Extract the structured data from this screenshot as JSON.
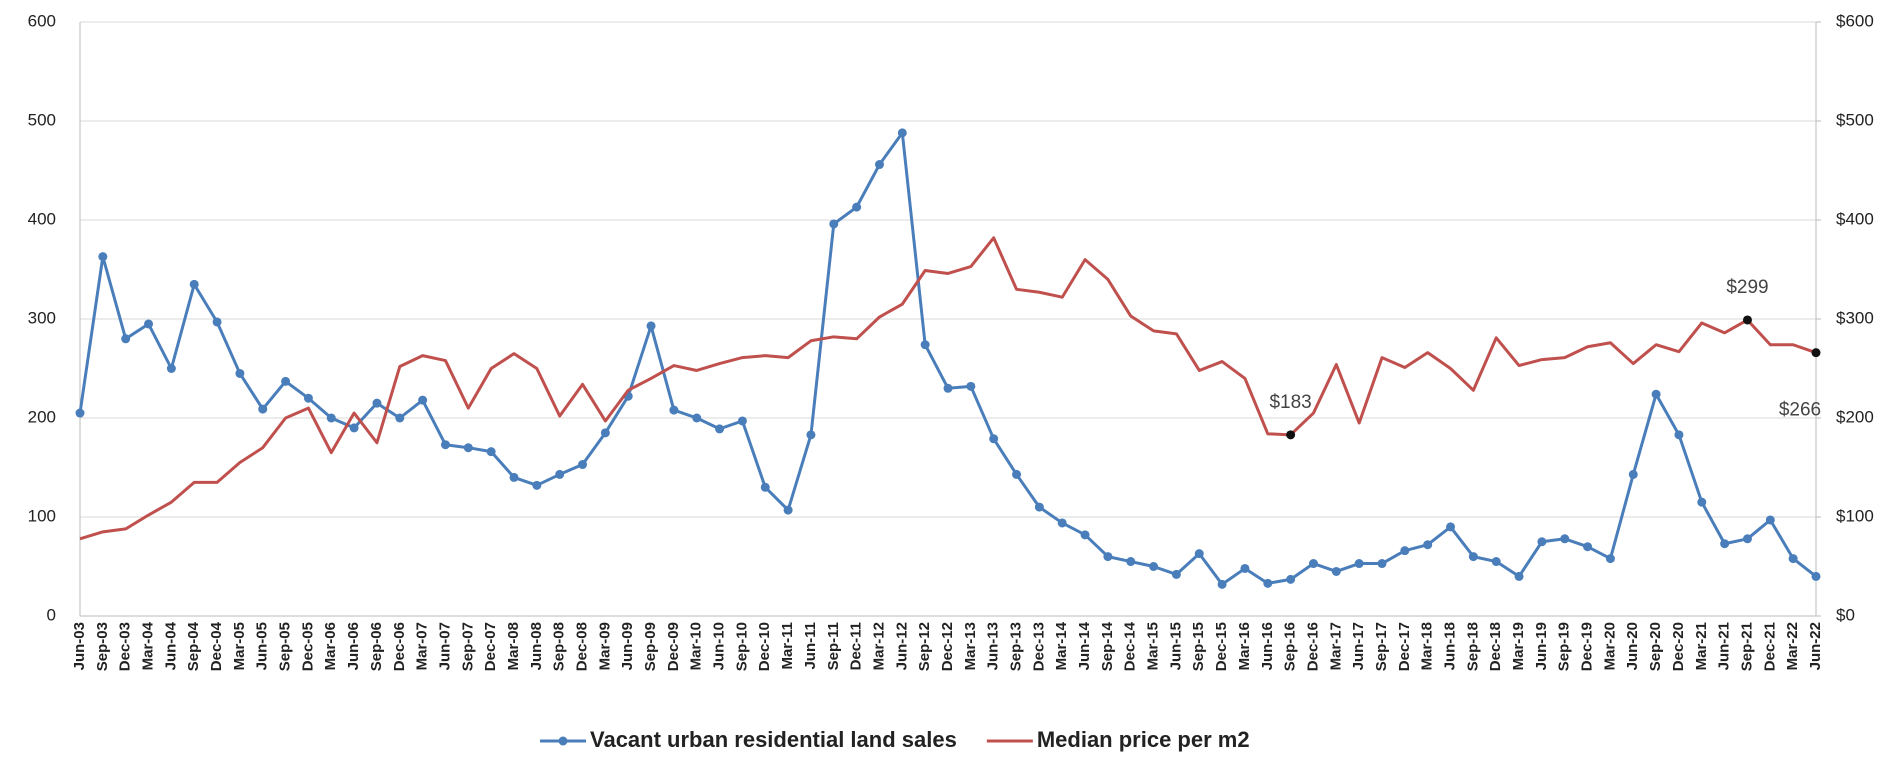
{
  "chart_data": {
    "type": "line",
    "categories": [
      "Jun-03",
      "Sep-03",
      "Dec-03",
      "Mar-04",
      "Jun-04",
      "Sep-04",
      "Dec-04",
      "Mar-05",
      "Jun-05",
      "Sep-05",
      "Dec-05",
      "Mar-06",
      "Jun-06",
      "Sep-06",
      "Dec-06",
      "Mar-07",
      "Jun-07",
      "Sep-07",
      "Dec-07",
      "Mar-08",
      "Jun-08",
      "Sep-08",
      "Dec-08",
      "Mar-09",
      "Jun-09",
      "Sep-09",
      "Dec-09",
      "Mar-10",
      "Jun-10",
      "Sep-10",
      "Dec-10",
      "Mar-11",
      "Jun-11",
      "Sep-11",
      "Dec-11",
      "Mar-12",
      "Jun-12",
      "Sep-12",
      "Dec-12",
      "Mar-13",
      "Jun-13",
      "Sep-13",
      "Dec-13",
      "Mar-14",
      "Jun-14",
      "Sep-14",
      "Dec-14",
      "Mar-15",
      "Jun-15",
      "Sep-15",
      "Dec-15",
      "Mar-16",
      "Jun-16",
      "Sep-16",
      "Dec-16",
      "Mar-17",
      "Jun-17",
      "Sep-17",
      "Dec-17",
      "Mar-18",
      "Jun-18",
      "Sep-18",
      "Dec-18",
      "Mar-19",
      "Jun-19",
      "Sep-19",
      "Dec-19",
      "Mar-20",
      "Jun-20",
      "Sep-20",
      "Dec-20",
      "Mar-21",
      "Jun-21",
      "Sep-21",
      "Dec-21",
      "Mar-22",
      "Jun-22"
    ],
    "series": [
      {
        "name": "Vacant urban residential land sales",
        "color": "#4a7ebb",
        "markers": true,
        "values": [
          205,
          363,
          280,
          295,
          250,
          335,
          297,
          245,
          209,
          237,
          220,
          200,
          190,
          215,
          200,
          218,
          173,
          170,
          166,
          140,
          132,
          143,
          153,
          185,
          222,
          293,
          208,
          200,
          189,
          197,
          130,
          107,
          183,
          396,
          413,
          456,
          488,
          274,
          230,
          232,
          179,
          143,
          110,
          94,
          82,
          60,
          55,
          50,
          42,
          63,
          32,
          48,
          33,
          37,
          53,
          45,
          53,
          53,
          66,
          72,
          90,
          60,
          55,
          40,
          75,
          78,
          70,
          58,
          143,
          224,
          183,
          115,
          73,
          78,
          97,
          58,
          40
        ]
      },
      {
        "name": "Median price per m2",
        "color": "#c0504d",
        "axis": "y2",
        "values": [
          78,
          85,
          88,
          102,
          115,
          135,
          135,
          155,
          170,
          200,
          210,
          165,
          205,
          175,
          252,
          263,
          258,
          210,
          250,
          265,
          250,
          202,
          234,
          197,
          228,
          240,
          253,
          248,
          255,
          261,
          263,
          261,
          278,
          282,
          280,
          302,
          315,
          349,
          346,
          353,
          382,
          330,
          327,
          322,
          360,
          340,
          303,
          288,
          285,
          248,
          257,
          240,
          184,
          183,
          205,
          254,
          195,
          261,
          251,
          266,
          250,
          228,
          281,
          253,
          259,
          261,
          272,
          276,
          255,
          274,
          267,
          296,
          286,
          299,
          274,
          274,
          266
        ],
        "value_labels": [
          null,
          null,
          null,
          null,
          null,
          null,
          null,
          null,
          null,
          null,
          null,
          null,
          null,
          null,
          null,
          null,
          null,
          null,
          null,
          null,
          null,
          null,
          null,
          null,
          null,
          null,
          null,
          null,
          null,
          null,
          null,
          null,
          null,
          null,
          null,
          null,
          null,
          null,
          null,
          null,
          null,
          null,
          null,
          null,
          null,
          null,
          null,
          null,
          null,
          null,
          null,
          null,
          null,
          "$183",
          null,
          null,
          null,
          null,
          null,
          null,
          null,
          null,
          null,
          null,
          null,
          null,
          null,
          null,
          null,
          null,
          null,
          null,
          null,
          "$299",
          null,
          null,
          "$266"
        ]
      }
    ],
    "ylim": [
      0,
      600
    ],
    "yticks": [
      0,
      100,
      200,
      300,
      400,
      500,
      600
    ],
    "y2lim": [
      0,
      600
    ],
    "y2ticks": [
      {
        "value": 0,
        "label": "$0"
      },
      {
        "value": 100,
        "label": "$100"
      },
      {
        "value": 200,
        "label": "$200"
      },
      {
        "value": 300,
        "label": "$300"
      },
      {
        "value": 400,
        "label": "$400"
      },
      {
        "value": 500,
        "label": "$500"
      },
      {
        "value": 600,
        "label": "$600"
      }
    ],
    "grid": true,
    "legend": "bottom"
  }
}
